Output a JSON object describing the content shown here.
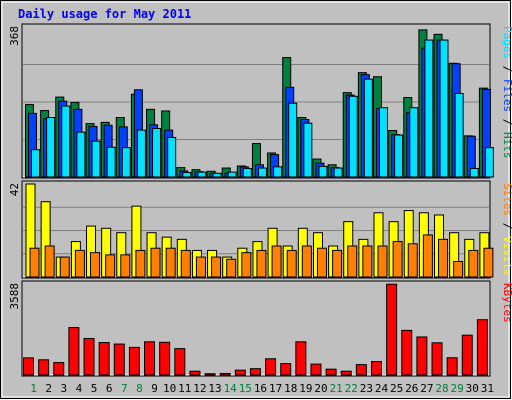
{
  "chart_data": {
    "type": "bar",
    "title": "Daily usage for May 2011",
    "x": [
      "1",
      "2",
      "3",
      "4",
      "5",
      "6",
      "7",
      "8",
      "9",
      "10",
      "11",
      "12",
      "13",
      "14",
      "15",
      "16",
      "17",
      "18",
      "19",
      "20",
      "21",
      "22",
      "23",
      "24",
      "25",
      "26",
      "27",
      "28",
      "29",
      "30",
      "31"
    ],
    "weekend_days": [
      "1",
      "7",
      "8",
      "14",
      "15",
      "21",
      "22",
      "28",
      "29"
    ],
    "colors": {
      "background": "#c0c0c0",
      "frame": "#ffffff",
      "title": "#0000ff",
      "weekend_label": "#008040",
      "weekday_label": "#000000",
      "hits": "#008040",
      "files": "#0040ff",
      "pages": "#00e0ff",
      "visits": "#ffff00",
      "sites": "#ff8000",
      "kbytes": "#ff0000",
      "separator": "#000000"
    },
    "panels": [
      {
        "id": "hits-files-pages",
        "ymax_label": "368",
        "ymax": 368,
        "grid": true,
        "side_label_parts": [
          {
            "text": "Pages",
            "color_key": "pages"
          },
          {
            "text": " / ",
            "color_key": "separator"
          },
          {
            "text": "Files",
            "color_key": "files"
          },
          {
            "text": " / ",
            "color_key": "separator"
          },
          {
            "text": "Hits",
            "color_key": "hits"
          }
        ],
        "series": [
          {
            "key": "hits",
            "values": [
              178,
              163,
              196,
              183,
              131,
              134,
              146,
              203,
              166,
              162,
              23,
              18,
              14,
              22,
              27,
              82,
              59,
              293,
              146,
              44,
              30,
              207,
              256,
              246,
              114,
              195,
              361,
              350,
              279,
              101,
              218
            ]
          },
          {
            "key": "files",
            "values": [
              156,
              143,
              186,
              166,
              124,
              127,
              123,
              214,
              128,
              115,
              15,
              13,
              9,
              10,
              25,
              30,
              55,
              220,
              141,
              34,
              23,
              201,
              251,
              168,
              104,
              158,
              316,
              336,
              278,
              100,
              215
            ]
          },
          {
            "key": "pages",
            "values": [
              67,
              146,
              174,
              110,
              88,
              73,
              72,
              115,
              119,
              97,
              11,
              12,
              9,
              12,
              21,
              22,
              25,
              181,
              132,
              26,
              22,
              198,
              240,
              170,
              103,
              170,
              336,
              336,
              205,
              21,
              72
            ]
          }
        ]
      },
      {
        "id": "visits-sites",
        "ymax_label": "42",
        "ymax": 42,
        "grid": true,
        "side_label_parts": [
          {
            "text": "Sites",
            "color_key": "sites"
          },
          {
            "text": " / ",
            "color_key": "separator"
          },
          {
            "text": "Visits",
            "color_key": "visits"
          }
        ],
        "series": [
          {
            "key": "visits",
            "values": [
              42,
              34,
              9,
              16,
              23,
              22,
              20,
              32,
              20,
              18,
              17,
              12,
              12,
              9,
              13,
              16,
              22,
              14,
              22,
              20,
              14,
              25,
              17,
              29,
              25,
              30,
              29,
              28,
              20,
              17,
              20
            ]
          },
          {
            "key": "sites",
            "values": [
              13,
              14,
              9,
              12,
              11,
              10,
              10,
              12,
              13,
              13,
              12,
              9,
              9,
              8,
              11,
              12,
              14,
              12,
              14,
              13,
              12,
              14,
              14,
              14,
              16,
              15,
              19,
              17,
              7,
              12,
              13
            ]
          }
        ]
      },
      {
        "id": "kbytes",
        "ymax_label": "3588",
        "ymax": 3588,
        "grid": false,
        "side_label_parts": [
          {
            "text": "KBytes",
            "color_key": "kbytes"
          }
        ],
        "series": [
          {
            "key": "kbytes",
            "values": [
              675,
              600,
              490,
              1870,
              1440,
              1280,
              1220,
              1090,
              1310,
              1290,
              1040,
              150,
              50,
              60,
              190,
              250,
              640,
              450,
              1310,
              430,
              230,
              150,
              410,
              530,
              3580,
              1760,
              1500,
              1270,
              680,
              1570,
              2180
            ]
          }
        ]
      }
    ]
  }
}
